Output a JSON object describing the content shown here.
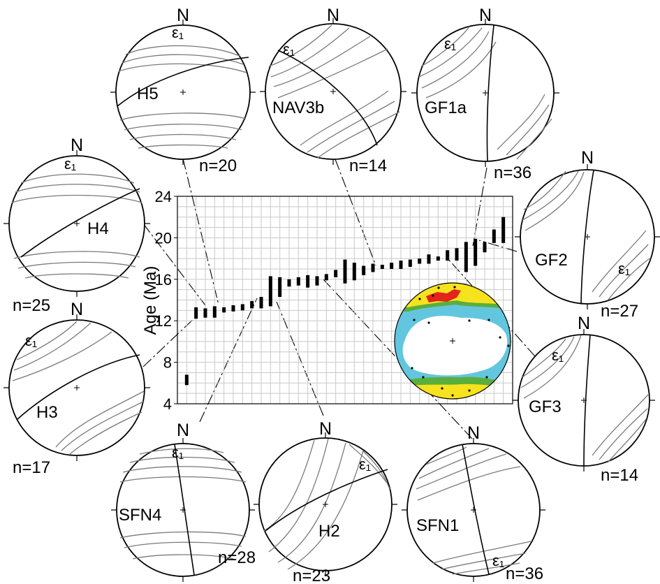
{
  "chart_data": {
    "type": "range_bars",
    "ylabel": "Age (Ma)",
    "yticks": [
      4,
      8,
      12,
      16,
      20,
      24
    ],
    "ylim": [
      4,
      24
    ],
    "grid": true,
    "ranges": [
      [
        5.8,
        6.8
      ],
      [
        12.2,
        13.3
      ],
      [
        12.3,
        13.2
      ],
      [
        12.3,
        13.4
      ],
      [
        12.8,
        13.3
      ],
      [
        12.9,
        13.5
      ],
      [
        13.0,
        13.6
      ],
      [
        13.2,
        13.9
      ],
      [
        13.2,
        14.3
      ],
      [
        13.4,
        16.3
      ],
      [
        14.3,
        16.2
      ],
      [
        15.3,
        16.0
      ],
      [
        15.4,
        16.2
      ],
      [
        15.2,
        16.4
      ],
      [
        15.4,
        16.3
      ],
      [
        15.9,
        16.5
      ],
      [
        16.2,
        16.9
      ],
      [
        15.6,
        17.9
      ],
      [
        15.9,
        17.6
      ],
      [
        16.4,
        17.3
      ],
      [
        16.7,
        17.5
      ],
      [
        17.0,
        17.4
      ],
      [
        17.0,
        17.6
      ],
      [
        17.0,
        17.8
      ],
      [
        17.2,
        17.9
      ],
      [
        17.5,
        18.0
      ],
      [
        17.5,
        18.4
      ],
      [
        17.8,
        18.2
      ],
      [
        17.8,
        18.8
      ],
      [
        17.8,
        19.0
      ],
      [
        16.7,
        19.6
      ],
      [
        17.3,
        19.9
      ],
      [
        18.6,
        19.6
      ],
      [
        19.5,
        20.8
      ],
      [
        19.5,
        22.0
      ]
    ]
  },
  "stereonets": [
    {
      "north": "N",
      "label": "H5",
      "n": "n=20",
      "epsilon": "ε₁"
    },
    {
      "north": "N",
      "label": "NAV3b",
      "n": "n=14",
      "epsilon": "ε₁"
    },
    {
      "north": "N",
      "label": "GF1a",
      "n": "n=36",
      "epsilon": "ε₁"
    },
    {
      "north": "N",
      "label": "H4",
      "n": "n=25",
      "epsilon": "ε₁"
    },
    {
      "north": "N",
      "label": "GF2",
      "n": "n=27",
      "epsilon": "ε₁"
    },
    {
      "north": "N",
      "label": "H3",
      "n": "n=17",
      "epsilon": "ε₁"
    },
    {
      "north": "N",
      "label": "GF3",
      "n": "n=14",
      "epsilon": "ε₁"
    },
    {
      "north": "N",
      "label": "SFN4",
      "n": "n=28",
      "epsilon": "ε₁"
    },
    {
      "north": "N",
      "label": "H2",
      "n": "n=23",
      "epsilon": "ε₁"
    },
    {
      "north": "N",
      "label": "SFN1",
      "n": "n=36",
      "epsilon": "ε₁"
    }
  ],
  "colors": {
    "contour": "#7a7a7a",
    "grid": "#c8c8c8",
    "density_low": "#63c6df",
    "density_mid": "#5aae3c",
    "density_high": "#f6e31d",
    "density_max": "#e3231c"
  }
}
